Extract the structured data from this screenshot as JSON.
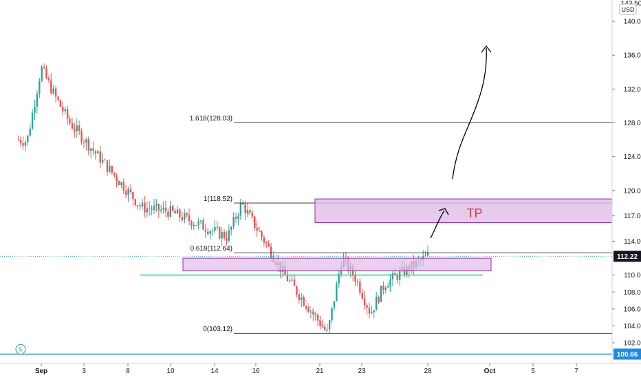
{
  "colors": {
    "up": "#26a69a",
    "down": "#ef5350",
    "zone_fill": "#e1bee7",
    "zone_stroke": "#9c27b0",
    "support_line": "#00e676",
    "bottom_line": "#2196f3",
    "fib_line": "#000000",
    "tp_text": "#e53935",
    "price_tag": "#131722",
    "bottom_tag": "#1e88e5"
  },
  "price_axis": {
    "currency": "USD",
    "top_partial": "143.50",
    "ticks": [
      "140.00",
      "136.00",
      "132.00",
      "128.00",
      "124.00",
      "120.00",
      "117.00",
      "114.00",
      "110.00",
      "108.00",
      "106.00",
      "104.00",
      "102.00"
    ],
    "current_price": "112.22",
    "bottom_line_price": "100.66",
    "bottom_marker_icon": "s-marker-icon",
    "bottom_marker_label": "S"
  },
  "time_axis": {
    "labels": [
      "Sep",
      "3",
      "8",
      "10",
      "14",
      "16",
      "21",
      "23",
      "28",
      "Oct",
      "5",
      "7"
    ]
  },
  "fib_levels": [
    {
      "label": "1.618(128.03)",
      "price": 128.03
    },
    {
      "label": "1(118.52)",
      "price": 118.52
    },
    {
      "label": "0.618(112.64)",
      "price": 112.64
    },
    {
      "label": "0(103.12)",
      "price": 103.12
    }
  ],
  "annotations": {
    "tp_label": "TP"
  },
  "chart_data": {
    "type": "candlestick",
    "title": "",
    "xlabel": "",
    "ylabel": "",
    "ylim": [
      100,
      143.5
    ],
    "x_labels": [
      "Sep",
      "3",
      "8",
      "10",
      "14",
      "16",
      "21",
      "23",
      "28",
      "Oct",
      "5",
      "7"
    ],
    "series_close_key_points": [
      {
        "x": "Aug 31",
        "y": 125.8
      },
      {
        "x": "Sep 1",
        "y": 134.5
      },
      {
        "x": "Sep 2",
        "y": 131.0
      },
      {
        "x": "Sep 3",
        "y": 128.0
      },
      {
        "x": "Sep 8",
        "y": 118.0
      },
      {
        "x": "Sep 10",
        "y": 117.5
      },
      {
        "x": "Sep 14",
        "y": 114.5
      },
      {
        "x": "Sep 15",
        "y": 118.5
      },
      {
        "x": "Sep 18",
        "y": 110.0
      },
      {
        "x": "Sep 21",
        "y": 103.12
      },
      {
        "x": "Sep 22",
        "y": 112.0
      },
      {
        "x": "Sep 23",
        "y": 109.5
      },
      {
        "x": "Sep 24",
        "y": 105.5
      },
      {
        "x": "Sep 25",
        "y": 109.0
      },
      {
        "x": "Sep 28",
        "y": 112.22
      }
    ],
    "fibonacci": [
      {
        "ratio": "1.618",
        "value": 128.03
      },
      {
        "ratio": "1",
        "value": 118.52
      },
      {
        "ratio": "0.618",
        "value": 112.64
      },
      {
        "ratio": "0",
        "value": 103.12
      }
    ],
    "zones": [
      {
        "label": "TP",
        "from": 116.2,
        "to": 119.0
      },
      {
        "label": "",
        "from": 110.5,
        "to": 112.0
      }
    ],
    "support_line": 110.0,
    "horizontal_line": 100.66,
    "current_price": 112.22
  }
}
